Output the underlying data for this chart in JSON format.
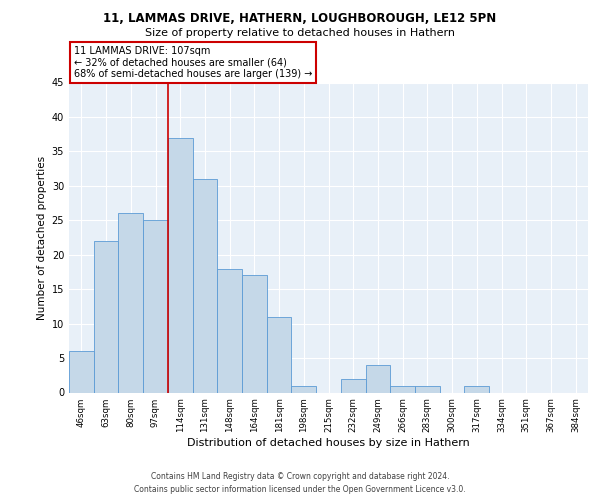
{
  "title1": "11, LAMMAS DRIVE, HATHERN, LOUGHBOROUGH, LE12 5PN",
  "title2": "Size of property relative to detached houses in Hathern",
  "xlabel": "Distribution of detached houses by size in Hathern",
  "ylabel": "Number of detached properties",
  "bin_labels": [
    "46sqm",
    "63sqm",
    "80sqm",
    "97sqm",
    "114sqm",
    "131sqm",
    "148sqm",
    "164sqm",
    "181sqm",
    "198sqm",
    "215sqm",
    "232sqm",
    "249sqm",
    "266sqm",
    "283sqm",
    "300sqm",
    "317sqm",
    "334sqm",
    "351sqm",
    "367sqm",
    "384sqm"
  ],
  "bar_values": [
    6,
    22,
    26,
    25,
    37,
    31,
    18,
    17,
    11,
    1,
    0,
    2,
    4,
    1,
    1,
    0,
    1,
    0,
    0,
    0,
    0
  ],
  "bar_color": "#c5d8e8",
  "bar_edge_color": "#5b9bd5",
  "vline_index": 4,
  "vline_color": "#cc0000",
  "annotation_text": "11 LAMMAS DRIVE: 107sqm\n← 32% of detached houses are smaller (64)\n68% of semi-detached houses are larger (139) →",
  "annotation_box_edge_color": "#cc0000",
  "ylim": [
    0,
    45
  ],
  "yticks": [
    0,
    5,
    10,
    15,
    20,
    25,
    30,
    35,
    40,
    45
  ],
  "footnote1": "Contains HM Land Registry data © Crown copyright and database right 2024.",
  "footnote2": "Contains public sector information licensed under the Open Government Licence v3.0.",
  "bg_color": "#e8f0f8",
  "fig_bg_color": "#ffffff",
  "grid_color": "#ffffff"
}
